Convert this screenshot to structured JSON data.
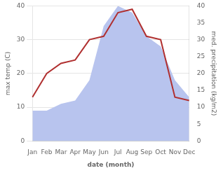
{
  "chart_data": {
    "type": "line",
    "categories": [
      "Jan",
      "Feb",
      "Mar",
      "Apr",
      "May",
      "Jun",
      "Jul",
      "Aug",
      "Sep",
      "Oct",
      "Nov",
      "Dec"
    ],
    "series": [
      {
        "type": "area",
        "color": "#b8c4ee",
        "axis": "y2",
        "values": [
          9,
          9,
          11,
          12,
          18,
          34,
          40,
          38,
          31,
          28,
          18,
          13
        ]
      },
      {
        "type": "line",
        "color": "#b03030",
        "values": [
          13,
          20,
          23,
          24,
          30,
          31,
          38,
          39,
          31,
          30,
          13,
          12
        ]
      }
    ],
    "xlabel": "date (month)",
    "ylabel": "max temp (C)",
    "y2label": "med. precipitation (kg/m2)",
    "ylim": [
      0,
      40
    ],
    "yticks": [
      0,
      10,
      20,
      30,
      40
    ],
    "y2lim": [
      0,
      40
    ],
    "y2ticks": [
      0,
      5,
      10,
      15,
      20,
      25,
      30,
      35,
      40
    ],
    "grid": true
  }
}
